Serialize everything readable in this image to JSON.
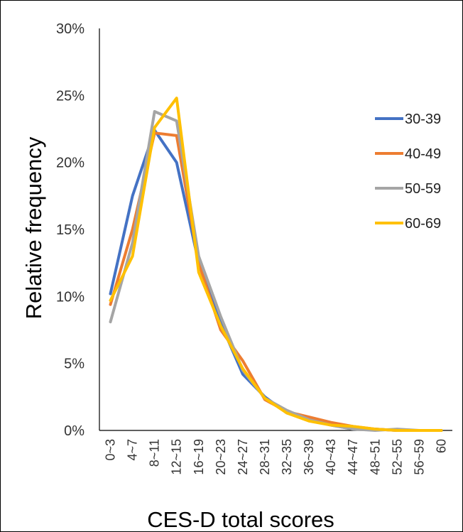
{
  "chart_data": {
    "type": "line",
    "title": "",
    "xlabel": "CES-D total scores",
    "ylabel": "Relative frequency",
    "ylim": [
      0,
      0.3
    ],
    "yticks": [
      0,
      0.05,
      0.1,
      0.15,
      0.2,
      0.25,
      0.3
    ],
    "ytick_labels": [
      "0%",
      "5%",
      "10%",
      "15%",
      "20%",
      "25%",
      "30%"
    ],
    "grid": false,
    "legend_position": "right",
    "categories": [
      "0~3",
      "4~7",
      "8~11",
      "12~15",
      "16~19",
      "20~23",
      "24~27",
      "28~31",
      "32~35",
      "36~39",
      "40~43",
      "44~47",
      "48~51",
      "52~55",
      "56~59",
      "60"
    ],
    "series": [
      {
        "name": "30-39",
        "color": "#4472C4",
        "values": [
          0.102,
          0.175,
          0.224,
          0.2,
          0.125,
          0.08,
          0.042,
          0.025,
          0.013,
          0.008,
          0.004,
          0.001,
          0.001,
          0.0,
          0.0,
          0.0
        ]
      },
      {
        "name": "40-49",
        "color": "#ED7D31",
        "values": [
          0.094,
          0.15,
          0.222,
          0.22,
          0.125,
          0.075,
          0.052,
          0.023,
          0.014,
          0.01,
          0.006,
          0.003,
          0.001,
          0.0,
          0.0,
          0.0
        ]
      },
      {
        "name": "50-59",
        "color": "#A5A5A5",
        "values": [
          0.081,
          0.14,
          0.238,
          0.231,
          0.13,
          0.085,
          0.045,
          0.024,
          0.015,
          0.008,
          0.004,
          0.001,
          0.0,
          0.001,
          0.0,
          0.0
        ]
      },
      {
        "name": "60-69",
        "color": "#FFC000",
        "values": [
          0.097,
          0.13,
          0.226,
          0.248,
          0.118,
          0.078,
          0.046,
          0.024,
          0.013,
          0.007,
          0.004,
          0.003,
          0.001,
          0.0,
          0.0,
          0.0
        ]
      }
    ]
  }
}
